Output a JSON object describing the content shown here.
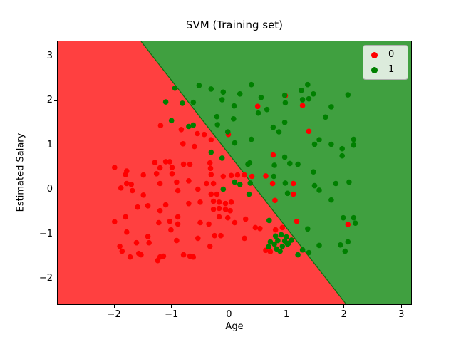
{
  "figure": {
    "title": "SVM (Training set)",
    "xlabel": "Age",
    "ylabel": "Estimated Salary"
  },
  "legend": {
    "items": [
      {
        "label": "0",
        "color": "#ff0000"
      },
      {
        "label": "1",
        "color": "#008000"
      }
    ]
  },
  "chart_data": {
    "type": "scatter",
    "title": "SVM (Training set)",
    "xlabel": "Age",
    "ylabel": "Estimated Salary",
    "xlim": [
      -2.98,
      3.17
    ],
    "ylim": [
      -2.57,
      3.33
    ],
    "x_ticks": [
      -2,
      -1,
      0,
      1,
      2,
      3
    ],
    "x_tick_labels": [
      "−2",
      "−1",
      "0",
      "1",
      "2",
      "3"
    ],
    "y_ticks": [
      3,
      2,
      1,
      0,
      -1,
      -2
    ],
    "y_tick_labels": [
      "3",
      "2",
      "1",
      "0",
      "−1",
      "−2"
    ],
    "grid": false,
    "legend_position": "upper right",
    "background_regions": {
      "class0_color": "#ff4040",
      "class1_color": "#40a040",
      "boundary_edge_color": "#0e6d0e",
      "boundary": {
        "x1": -1.53,
        "y1": 3.33,
        "x2": 2.04,
        "y2": -2.57
      }
    },
    "series": [
      {
        "name": "0",
        "marker_color": "#ff0000",
        "points": [
          [
            -1.19,
            1.44
          ],
          [
            -1.99,
            0.5
          ],
          [
            -1.78,
            0.42
          ],
          [
            -1.29,
            0.61
          ],
          [
            -1.2,
            0.49
          ],
          [
            -1.1,
            0.63
          ],
          [
            -1.03,
            0.63
          ],
          [
            -0.99,
            0.5
          ],
          [
            0.98,
            2.11
          ],
          [
            0.5,
            1.87
          ],
          [
            -0.83,
            1.35
          ],
          [
            -0.55,
            1.26
          ],
          [
            -0.43,
            1.24
          ],
          [
            -0.31,
            1.12
          ],
          [
            -0.01,
            1.24
          ],
          [
            -0.6,
            0.97
          ],
          [
            -0.8,
            1.03
          ],
          [
            -0.33,
            0.6
          ],
          [
            -0.32,
            0.48
          ],
          [
            -0.79,
            0.57
          ],
          [
            -0.68,
            0.57
          ],
          [
            0.77,
            0.78
          ],
          [
            1.28,
            1.89
          ],
          [
            1.39,
            1.31
          ],
          [
            -1.8,
            0.34
          ],
          [
            -1.49,
            0.33
          ],
          [
            -1.26,
            0.36
          ],
          [
            -0.99,
            0.36
          ],
          [
            -1.88,
            0.04
          ],
          [
            -1.78,
            0.14
          ],
          [
            -1.7,
            0.12
          ],
          [
            -1.68,
            -0.02
          ],
          [
            -1.49,
            -0.12
          ],
          [
            -1.2,
            0.14
          ],
          [
            -1.59,
            -0.39
          ],
          [
            -1.41,
            -0.36
          ],
          [
            -1.2,
            -0.47
          ],
          [
            -1.1,
            -0.34
          ],
          [
            -1.99,
            -0.72
          ],
          [
            -1.8,
            -0.61
          ],
          [
            -1.22,
            -0.74
          ],
          [
            -1.03,
            -0.71
          ],
          [
            -1.01,
            -0.9
          ],
          [
            -1.78,
            -0.95
          ],
          [
            -1.41,
            -1.05
          ],
          [
            -1.39,
            -1.19
          ],
          [
            -1.61,
            -1.19
          ],
          [
            -1.57,
            -1.43
          ],
          [
            -1.9,
            -1.27
          ],
          [
            -1.86,
            -1.38
          ],
          [
            -1.72,
            -1.51
          ],
          [
            -1.53,
            -1.46
          ],
          [
            -1.2,
            -1.51
          ],
          [
            -1.14,
            -1.49
          ],
          [
            -1.24,
            -1.59
          ],
          [
            -0.31,
            0.34
          ],
          [
            -0.1,
            0.3
          ],
          [
            0.04,
            0.32
          ],
          [
            0.15,
            0.33
          ],
          [
            -0.91,
            0.17
          ],
          [
            -0.7,
            0.2
          ],
          [
            -0.89,
            -0.02
          ],
          [
            -0.54,
            0.01
          ],
          [
            -0.39,
            0.14
          ],
          [
            -0.27,
            0.14
          ],
          [
            -0.31,
            -0.1
          ],
          [
            -0.21,
            -0.1
          ],
          [
            -0.7,
            -0.31
          ],
          [
            -0.5,
            -0.28
          ],
          [
            -0.27,
            -0.26
          ],
          [
            -0.17,
            -0.28
          ],
          [
            -0.06,
            -0.31
          ],
          [
            0.04,
            -0.28
          ],
          [
            -0.27,
            -0.44
          ],
          [
            -0.17,
            -0.42
          ],
          [
            -0.06,
            -0.44
          ],
          [
            0.02,
            -0.47
          ],
          [
            -0.17,
            -0.61
          ],
          [
            -0.02,
            -0.63
          ],
          [
            -0.89,
            -0.61
          ],
          [
            -0.89,
            -0.77
          ],
          [
            -0.5,
            -0.74
          ],
          [
            -0.35,
            -0.77
          ],
          [
            0.1,
            -0.74
          ],
          [
            0.29,
            -0.66
          ],
          [
            0.54,
            -0.87
          ],
          [
            0.46,
            -0.85
          ],
          [
            -0.25,
            -1.03
          ],
          [
            -0.14,
            -1.03
          ],
          [
            -0.54,
            -1.09
          ],
          [
            -0.91,
            -1.14
          ],
          [
            -0.33,
            -1.27
          ],
          [
            0.27,
            -1.09
          ],
          [
            -0.79,
            -1.46
          ],
          [
            -0.68,
            -1.49
          ],
          [
            -0.62,
            -1.51
          ],
          [
            0.8,
            -0.24
          ],
          [
            0.81,
            -0.9
          ],
          [
            0.93,
            -0.85
          ],
          [
            0.64,
            -1.36
          ],
          [
            0.72,
            -1.39
          ],
          [
            0.27,
            0.33
          ],
          [
            0.4,
            0.3
          ],
          [
            0.64,
            0.31
          ],
          [
            0.76,
            0.14
          ],
          [
            1.12,
            0.14
          ],
          [
            1.12,
            -0.1
          ],
          [
            1.18,
            -0.71
          ],
          [
            2.07,
            -0.78
          ]
        ]
      },
      {
        "name": "1",
        "marker_color": "#008000",
        "points": [
          [
            -1.1,
            1.97
          ],
          [
            -1.0,
            1.55
          ],
          [
            -0.94,
            2.28
          ],
          [
            -0.52,
            2.34
          ],
          [
            -0.31,
            2.26
          ],
          [
            -0.1,
            2.19
          ],
          [
            0.19,
            2.15
          ],
          [
            0.39,
            2.36
          ],
          [
            0.56,
            2.07
          ],
          [
            0.97,
            2.12
          ],
          [
            0.98,
            1.95
          ],
          [
            -0.12,
            2.02
          ],
          [
            0.09,
            1.88
          ],
          [
            0.51,
            1.72
          ],
          [
            0.66,
            1.8
          ],
          [
            0.08,
            1.59
          ],
          [
            -0.21,
            1.64
          ],
          [
            -0.2,
            1.46
          ],
          [
            -0.62,
            1.96
          ],
          [
            -0.81,
            1.94
          ],
          [
            -0.7,
            1.42
          ],
          [
            -0.62,
            1.45
          ],
          [
            -0.02,
            1.3
          ],
          [
            0.1,
            1.05
          ],
          [
            0.39,
            1.13
          ],
          [
            0.77,
            1.4
          ],
          [
            0.87,
            1.3
          ],
          [
            0.97,
            1.51
          ],
          [
            -0.31,
            0.84
          ],
          [
            -0.12,
            0.71
          ],
          [
            0.33,
            0.57
          ],
          [
            0.36,
            0.6
          ],
          [
            0.97,
            0.73
          ],
          [
            0.79,
            0.55
          ],
          [
            1.37,
            2.36
          ],
          [
            1.26,
            2.23
          ],
          [
            1.47,
            2.15
          ],
          [
            1.39,
            2.04
          ],
          [
            1.28,
            2.02
          ],
          [
            2.07,
            2.13
          ],
          [
            1.78,
            1.86
          ],
          [
            1.68,
            1.63
          ],
          [
            1.57,
            1.12
          ],
          [
            1.49,
            1.02
          ],
          [
            1.78,
            1.02
          ],
          [
            2.17,
            1.13
          ],
          [
            2.17,
            1.0
          ],
          [
            1.97,
            0.92
          ],
          [
            1.97,
            0.76
          ],
          [
            1.2,
            0.57
          ],
          [
            1.47,
            0.4
          ],
          [
            1.06,
            0.59
          ],
          [
            -0.1,
            0.01
          ],
          [
            0.1,
            0.17
          ],
          [
            0.19,
            0.12
          ],
          [
            0.37,
            0.15
          ],
          [
            0.35,
            -0.1
          ],
          [
            0.78,
            0.3
          ],
          [
            0.98,
            0.15
          ],
          [
            1.02,
            -0.08
          ],
          [
            0.7,
            -0.69
          ],
          [
            0.72,
            -1.17
          ],
          [
            0.79,
            -1.22
          ],
          [
            0.83,
            -1.33
          ],
          [
            0.89,
            -1.38
          ],
          [
            0.93,
            -1.27
          ],
          [
            0.97,
            -1.15
          ],
          [
            1.02,
            -1.22
          ],
          [
            0.81,
            -1.04
          ],
          [
            0.91,
            -1.01
          ],
          [
            1.0,
            -1.06
          ],
          [
            0.85,
            -1.14
          ],
          [
            0.69,
            -1.28
          ],
          [
            1.04,
            -1.2
          ],
          [
            1.09,
            -1.13
          ],
          [
            1.49,
            0.09
          ],
          [
            1.57,
            -0.01
          ],
          [
            1.86,
            0.14
          ],
          [
            2.09,
            0.17
          ],
          [
            1.78,
            -0.23
          ],
          [
            1.99,
            -0.63
          ],
          [
            2.17,
            -0.63
          ],
          [
            2.2,
            -0.75
          ],
          [
            1.37,
            -0.88
          ],
          [
            1.28,
            -1.35
          ],
          [
            1.39,
            -1.41
          ],
          [
            1.2,
            -1.46
          ],
          [
            1.57,
            -1.25
          ],
          [
            1.94,
            -1.24
          ],
          [
            2.02,
            -1.38
          ],
          [
            2.07,
            -1.17
          ]
        ]
      }
    ]
  }
}
